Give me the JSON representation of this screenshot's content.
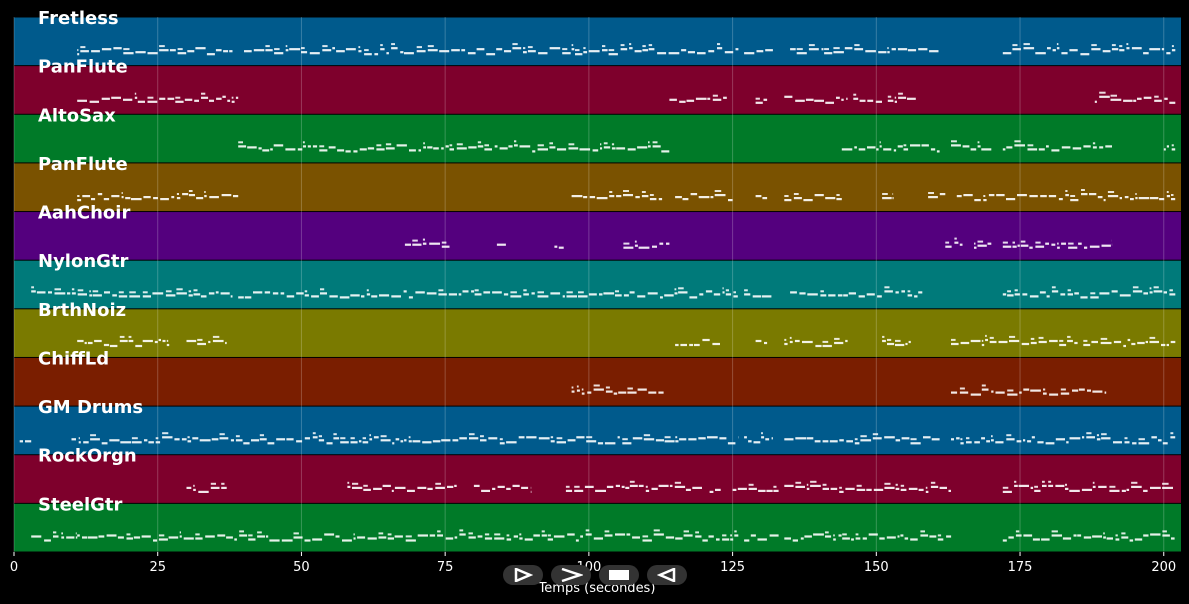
{
  "chart_data": {
    "type": "piano-roll",
    "xlabel": "Temps (secondes)",
    "xlim": [
      0,
      203
    ],
    "xticks": [
      0,
      25,
      50,
      75,
      100,
      125,
      150,
      175,
      200
    ],
    "grid": true,
    "tracks": [
      {
        "name": "Fretless",
        "color": "#005a8c",
        "segments": [
          [
            11,
            38
          ],
          [
            40,
            126
          ],
          [
            127,
            132
          ],
          [
            135,
            161
          ],
          [
            172,
            202
          ]
        ]
      },
      {
        "name": "PanFlute",
        "color": "#7e002c",
        "segments": [
          [
            11,
            39
          ],
          [
            114,
            124
          ],
          [
            129,
            131
          ],
          [
            134,
            145
          ],
          [
            146,
            151
          ],
          [
            152,
            157
          ],
          [
            188,
            202
          ]
        ]
      },
      {
        "name": "AltoSax",
        "color": "#007a28",
        "segments": [
          [
            39,
            114
          ],
          [
            144,
            161
          ],
          [
            163,
            170
          ],
          [
            172,
            191
          ],
          [
            200,
            202
          ]
        ]
      },
      {
        "name": "PanFlute",
        "color": "#7a5200",
        "segments": [
          [
            11,
            39
          ],
          [
            97,
            113
          ],
          [
            115,
            125
          ],
          [
            129,
            131
          ],
          [
            134,
            144
          ],
          [
            151,
            153
          ],
          [
            159,
            162
          ],
          [
            164,
            202
          ]
        ]
      },
      {
        "name": "AahChoir",
        "color": "#54007e",
        "segments": [
          [
            68,
            76
          ],
          [
            84,
            86
          ],
          [
            94,
            96
          ],
          [
            106,
            114
          ],
          [
            162,
            165
          ],
          [
            167,
            170
          ],
          [
            172,
            191
          ]
        ]
      },
      {
        "name": "NylonGtr",
        "color": "#007a7a",
        "segments": [
          [
            3,
            38
          ],
          [
            39,
            126
          ],
          [
            127,
            132
          ],
          [
            135,
            158
          ],
          [
            172,
            202
          ]
        ]
      },
      {
        "name": "BrthNoiz",
        "color": "#7a7a00",
        "segments": [
          [
            11,
            27
          ],
          [
            30,
            37
          ],
          [
            115,
            123
          ],
          [
            129,
            131
          ],
          [
            134,
            145
          ],
          [
            151,
            156
          ],
          [
            163,
            185
          ],
          [
            186,
            202
          ]
        ]
      },
      {
        "name": "ChiffLd",
        "color": "#7a1e00",
        "segments": [
          [
            97,
            113
          ],
          [
            163,
            190
          ]
        ]
      },
      {
        "name": "GM Drums",
        "color": "#005a8c",
        "segments": [
          [
            1,
            3
          ],
          [
            10,
            126
          ],
          [
            127,
            132
          ],
          [
            134,
            161
          ],
          [
            163,
            202
          ]
        ]
      },
      {
        "name": "RockOrgn",
        "color": "#7e002c",
        "segments": [
          [
            30,
            37
          ],
          [
            58,
            77
          ],
          [
            80,
            90
          ],
          [
            96,
            120
          ],
          [
            121,
            123
          ],
          [
            125,
            133
          ],
          [
            134,
            163
          ],
          [
            172,
            202
          ]
        ]
      },
      {
        "name": "SteelGtr",
        "color": "#007a28",
        "segments": [
          [
            3,
            11
          ],
          [
            11,
            126
          ],
          [
            127,
            133
          ],
          [
            134,
            163
          ],
          [
            172,
            202
          ]
        ]
      }
    ]
  },
  "controls": [
    {
      "icon": "play-icon"
    },
    {
      "icon": "fast-forward-icon"
    },
    {
      "icon": "stop-icon"
    },
    {
      "icon": "rewind-icon"
    }
  ]
}
